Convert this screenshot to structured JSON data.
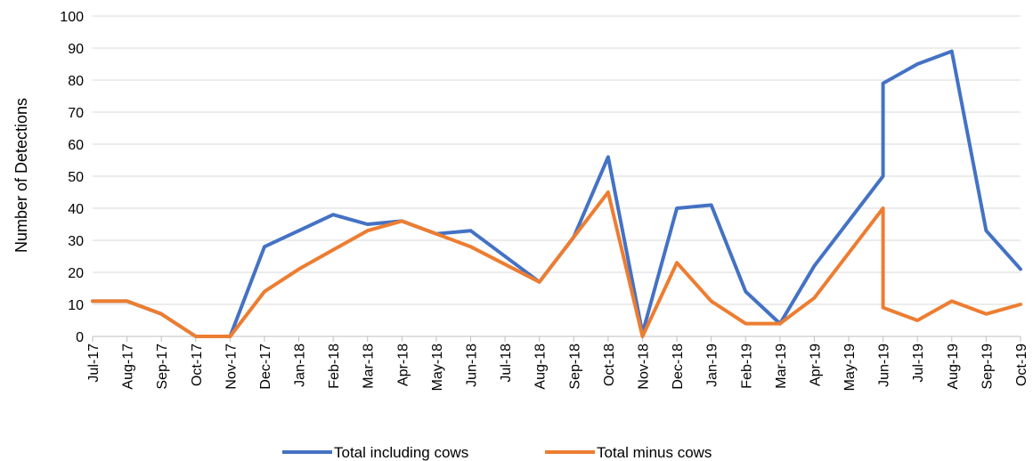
{
  "chart_data": {
    "type": "line",
    "title": "",
    "xlabel": "",
    "ylabel": "Number of Detections",
    "ylim": [
      0,
      100
    ],
    "ytick_step": 10,
    "grid": true,
    "legend_position": "bottom",
    "categories": [
      "Jul-17",
      "Aug-17",
      "Sep-17",
      "Oct-17",
      "Nov-17",
      "Dec-17",
      "Jan-18",
      "Feb-18",
      "Mar-18",
      "Apr-18",
      "May-18",
      "Jun-18",
      "Jul-18",
      "Aug-18",
      "Sep-18",
      "Oct-18",
      "Nov-18",
      "Dec-18",
      "Jan-19",
      "Feb-19",
      "Mar-19",
      "Apr-19",
      "May-19",
      "Jun-19",
      "Jul-19",
      "Aug-19",
      "Sep-19",
      "Oct-19"
    ],
    "series": [
      {
        "name": "Total including cows",
        "color": "#4472C4",
        "points": [
          [
            "Jul-17",
            11
          ],
          [
            "Aug-17",
            11
          ],
          [
            "Sep-17",
            7
          ],
          [
            "Oct-17",
            0
          ],
          [
            "Nov-17",
            0
          ],
          [
            "Dec-17",
            28
          ],
          [
            "Jan-18",
            33
          ],
          [
            "Feb-18",
            38
          ],
          [
            "Mar-18",
            35
          ],
          [
            "Apr-18",
            36
          ],
          [
            "May-18",
            32
          ],
          [
            "Jun-18",
            33
          ],
          [
            "Aug-18",
            17
          ],
          [
            "Sep-18",
            31
          ],
          [
            "Oct-18",
            56
          ],
          [
            "Nov-18",
            1
          ],
          [
            "Dec-18",
            40
          ],
          [
            "Jan-19",
            41
          ],
          [
            "Feb-19",
            14
          ],
          [
            "Mar-19",
            4
          ],
          [
            "Apr-19",
            22
          ],
          [
            "Jun-19",
            50
          ],
          [
            "Jun-19",
            79
          ],
          [
            "Jul-19",
            85
          ],
          [
            "Aug-19",
            89
          ],
          [
            "Sep-19",
            33
          ],
          [
            "Oct-19",
            21
          ]
        ]
      },
      {
        "name": "Total minus cows",
        "color": "#ED7D31",
        "points": [
          [
            "Jul-17",
            11
          ],
          [
            "Aug-17",
            11
          ],
          [
            "Sep-17",
            7
          ],
          [
            "Oct-17",
            0
          ],
          [
            "Nov-17",
            0
          ],
          [
            "Dec-17",
            14
          ],
          [
            "Jan-18",
            21
          ],
          [
            "Feb-18",
            27
          ],
          [
            "Mar-18",
            33
          ],
          [
            "Apr-18",
            36
          ],
          [
            "May-18",
            32
          ],
          [
            "Jun-18",
            28
          ],
          [
            "Aug-18",
            17
          ],
          [
            "Sep-18",
            31
          ],
          [
            "Oct-18",
            45
          ],
          [
            "Nov-18",
            0
          ],
          [
            "Dec-18",
            23
          ],
          [
            "Jan-19",
            11
          ],
          [
            "Feb-19",
            4
          ],
          [
            "Mar-19",
            4
          ],
          [
            "Apr-19",
            12
          ],
          [
            "Jun-19",
            40
          ],
          [
            "Jun-19",
            9
          ],
          [
            "Jul-19",
            5
          ],
          [
            "Aug-19",
            11
          ],
          [
            "Sep-19",
            7
          ],
          [
            "Oct-19",
            10
          ]
        ]
      }
    ]
  },
  "colors": {
    "grid": "#D9D9D9",
    "axis": "#BFBFBF",
    "text": "#000000"
  }
}
